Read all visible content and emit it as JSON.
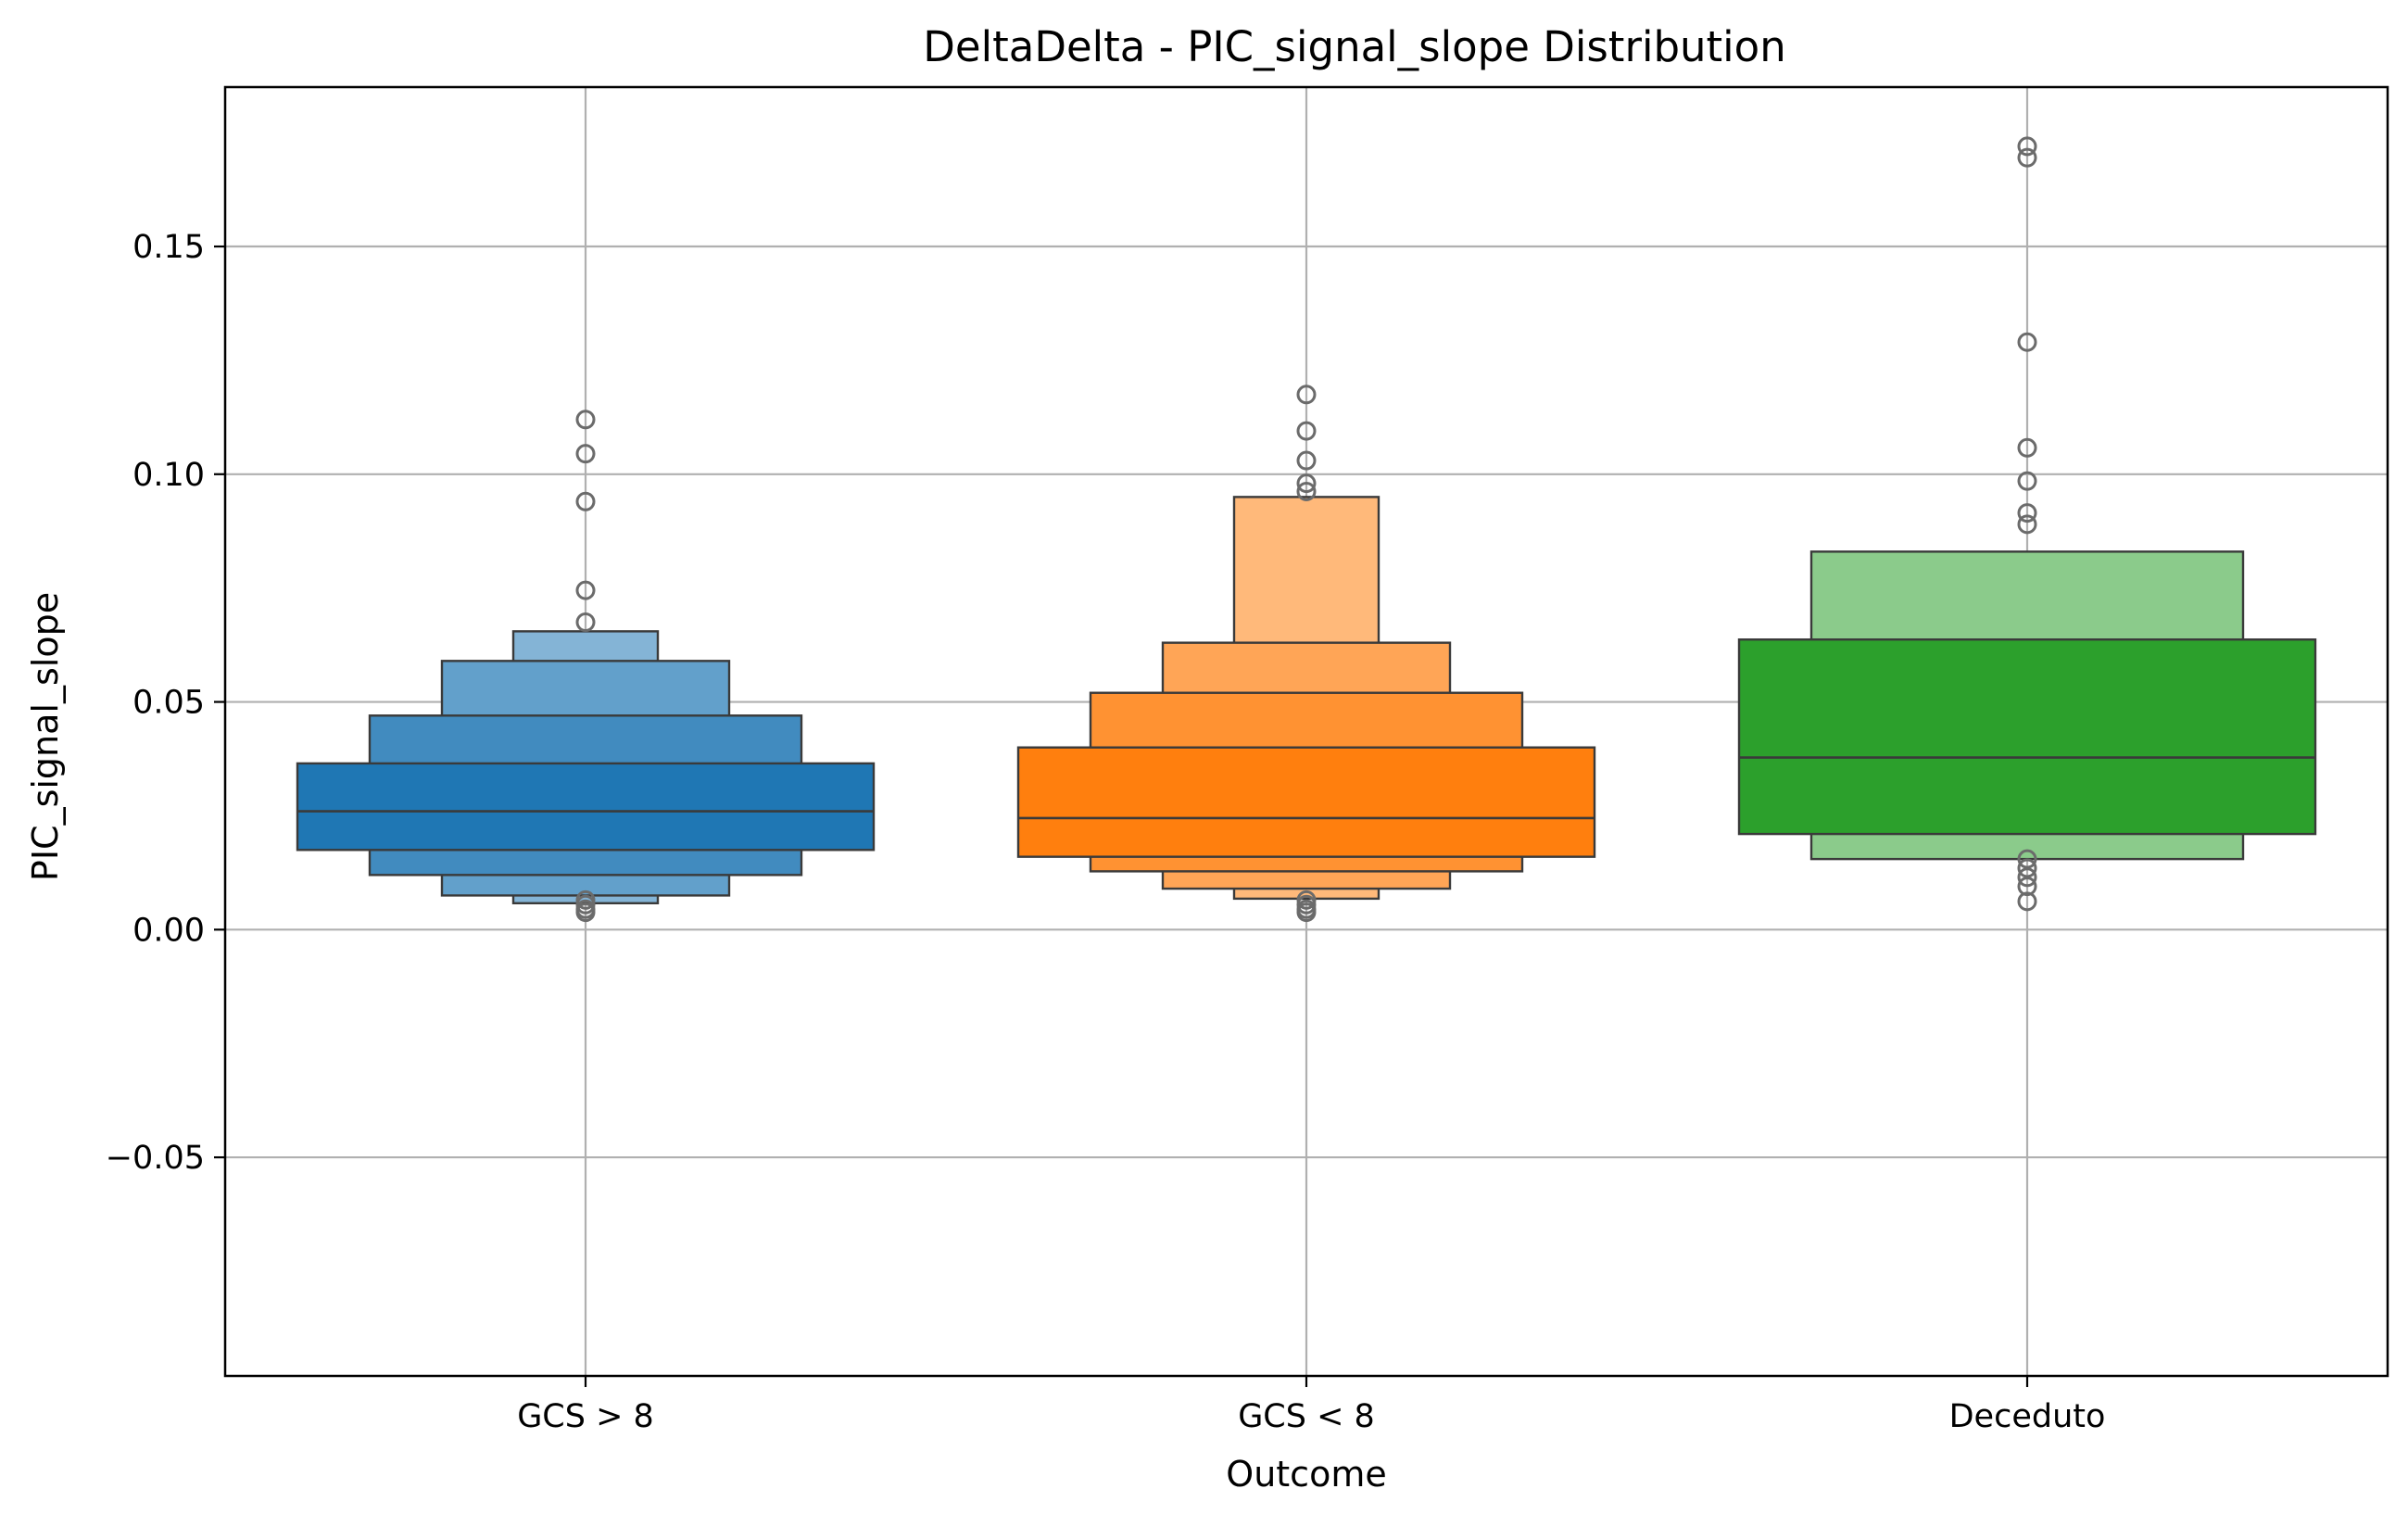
{
  "chart_data": {
    "type": "boxen",
    "title": "DeltaDelta - PIC_signal_slope Distribution",
    "xlabel": "Outcome",
    "ylabel": "PIC_signal_slope",
    "ylim": [
      -0.098,
      0.185
    ],
    "yticks": [
      -0.05,
      0.0,
      0.05,
      0.1,
      0.15
    ],
    "ytick_labels": [
      "−0.05",
      "0.00",
      "0.05",
      "0.10",
      "0.15"
    ],
    "grid": true,
    "categories": [
      "GCS > 8",
      "GCS < 8",
      "Deceduto"
    ],
    "series": [
      {
        "category": "GCS > 8",
        "color": "#1f77b4",
        "median": 0.026,
        "boxes": [
          {
            "low": 0.0175,
            "high": 0.0365
          },
          {
            "low": 0.012,
            "high": 0.047
          },
          {
            "low": 0.0075,
            "high": 0.059
          },
          {
            "low": 0.0058,
            "high": 0.0655
          }
        ],
        "outliers": [
          0.112,
          0.1045,
          0.094,
          0.0745,
          0.0675,
          0.0065,
          0.0055,
          0.0045,
          0.0038
        ]
      },
      {
        "category": "GCS < 8",
        "color": "#ff7f0e",
        "median": 0.0245,
        "boxes": [
          {
            "low": 0.016,
            "high": 0.04
          },
          {
            "low": 0.0128,
            "high": 0.052
          },
          {
            "low": 0.009,
            "high": 0.063
          },
          {
            "low": 0.0068,
            "high": 0.095
          }
        ],
        "outliers": [
          0.1175,
          0.1095,
          0.103,
          0.098,
          0.0962,
          0.0065,
          0.0055,
          0.0045,
          0.0038
        ]
      },
      {
        "category": "Deceduto",
        "color": "#2ca02c",
        "median": 0.0378,
        "boxes": [
          {
            "low": 0.021,
            "high": 0.0637
          },
          {
            "low": 0.0155,
            "high": 0.083
          }
        ],
        "outliers": [
          0.172,
          0.1695,
          0.129,
          0.1058,
          0.0985,
          0.0915,
          0.089,
          0.0155,
          0.0135,
          0.0115,
          0.0095,
          0.0062
        ]
      }
    ]
  }
}
